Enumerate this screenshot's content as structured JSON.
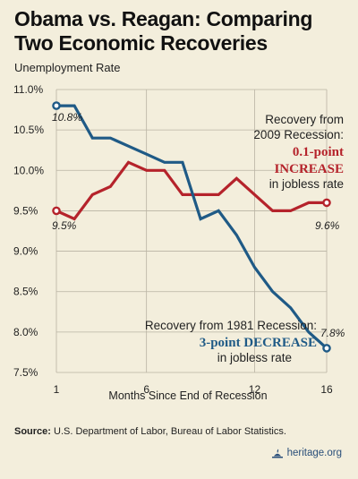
{
  "header": {
    "title": "Obama vs. Reagan: Comparing Two Economic Recoveries",
    "y_axis_title": "Unemployment Rate"
  },
  "footer": {
    "source_label": "Source:",
    "source_text": "U.S. Department of Labor, Bureau of Labor Statistics.",
    "brand": "heritage.org"
  },
  "colors": {
    "obama": "#b5232b",
    "reagan": "#1f5a86",
    "grid": "#b9b3a3",
    "background": "#f3eedc"
  },
  "chart_data": {
    "type": "line",
    "xlabel": "Months Since End of Recession",
    "ylabel": "Unemployment Rate",
    "x_ticks": [
      1,
      6,
      12,
      16
    ],
    "y_ticks": [
      "11.0%",
      "10.5%",
      "10.0%",
      "9.5%",
      "9.0%",
      "8.5%",
      "8.0%",
      "7.5%"
    ],
    "y_tick_values": [
      11.0,
      10.5,
      10.0,
      9.5,
      9.0,
      8.5,
      8.0,
      7.5
    ],
    "xlim": [
      1,
      16
    ],
    "ylim": [
      7.5,
      11.0
    ],
    "grid": true,
    "series": [
      {
        "key": "obama",
        "x": [
          1,
          2,
          3,
          4,
          5,
          6,
          7,
          8,
          9,
          10,
          11,
          12,
          13,
          14,
          15,
          16
        ],
        "values": [
          9.5,
          9.4,
          9.7,
          9.8,
          10.1,
          10.0,
          10.0,
          9.7,
          9.7,
          9.7,
          9.9,
          9.7,
          9.5,
          9.5,
          9.6,
          9.6
        ]
      },
      {
        "key": "reagan",
        "x": [
          1,
          2,
          3,
          4,
          5,
          6,
          7,
          8,
          9,
          10,
          11,
          12,
          13,
          14,
          15,
          16
        ],
        "values": [
          10.8,
          10.8,
          10.4,
          10.4,
          10.3,
          10.2,
          10.1,
          10.1,
          9.4,
          9.5,
          9.2,
          8.8,
          8.5,
          8.3,
          8.0,
          7.8
        ]
      }
    ],
    "annotations": {
      "obama_start": "9.5%",
      "obama_end": "9.6%",
      "reagan_start": "10.8%",
      "reagan_end": "7.8%",
      "obama_note_line1": "Recovery from",
      "obama_note_line2": "2009 Recession:",
      "obama_note_highlight1": "0.1-point",
      "obama_note_highlight2": "INCREASE",
      "obama_note_line3": "in jobless rate",
      "reagan_note_line1": "Recovery from 1981 Recession:",
      "reagan_note_highlight": "3-point DECREASE",
      "reagan_note_line3": "in jobless rate"
    }
  }
}
